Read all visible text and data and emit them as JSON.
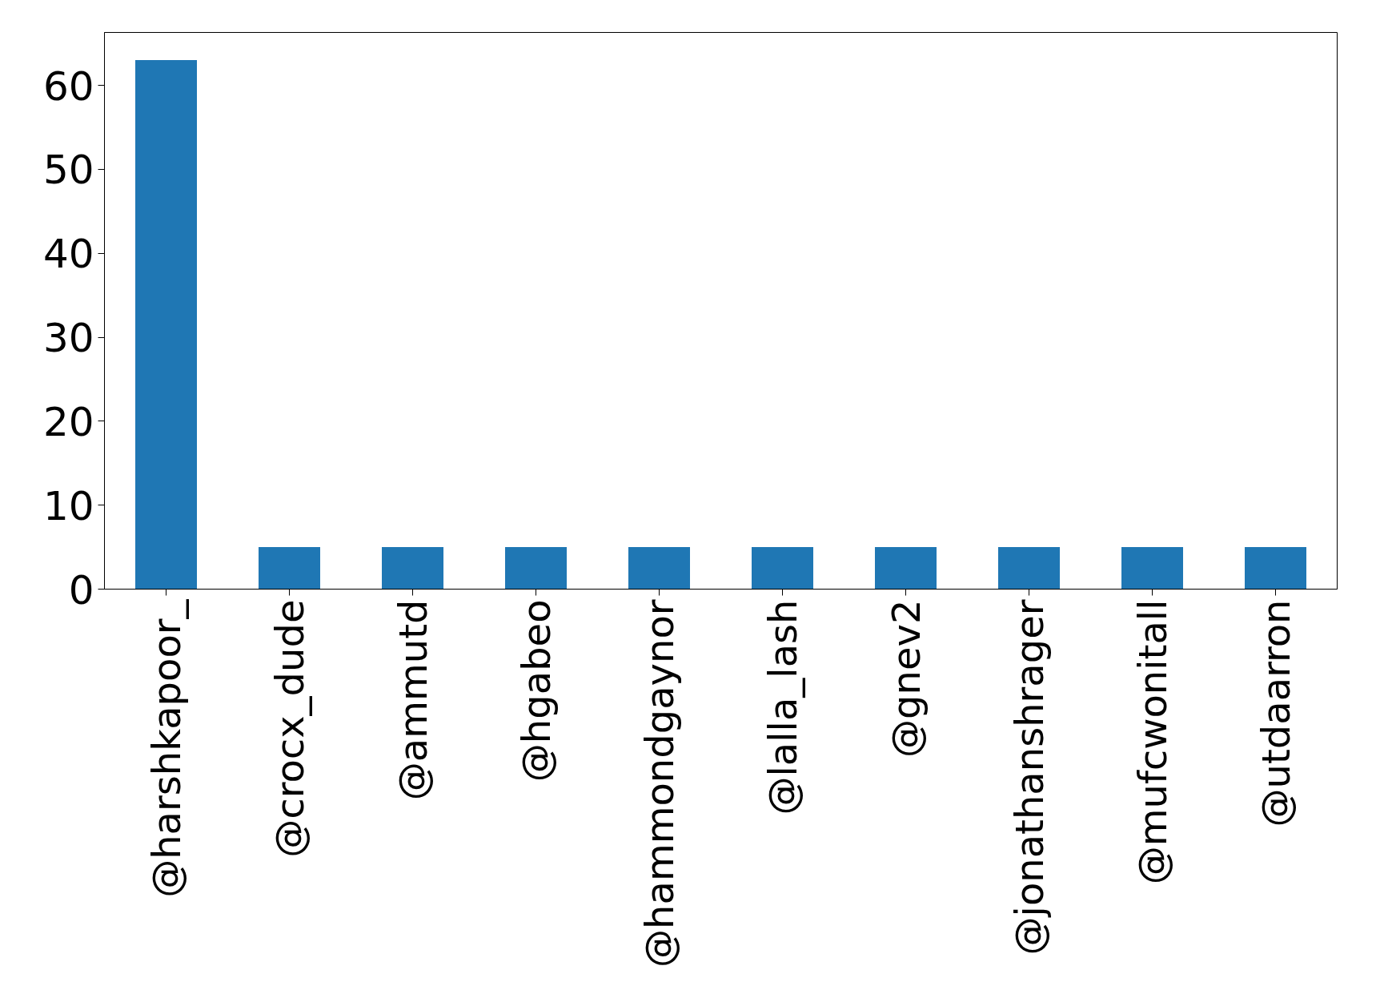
{
  "chart_data": {
    "type": "bar",
    "categories": [
      "@harshkapoor_",
      "@crocx_dude",
      "@ammutd",
      "@hgabeo",
      "@hammondgaynor",
      "@lalla_lash",
      "@gnev2",
      "@jonathanshrager",
      "@mufcwonitall",
      "@utdaarron"
    ],
    "values": [
      63,
      5,
      5,
      5,
      5,
      5,
      5,
      5,
      5,
      5
    ],
    "color": "#1f77b4",
    "ylim": [
      0,
      66.3
    ],
    "yticks": [
      0,
      10,
      20,
      30,
      40,
      50,
      60
    ],
    "grid": false,
    "legend": false
  }
}
